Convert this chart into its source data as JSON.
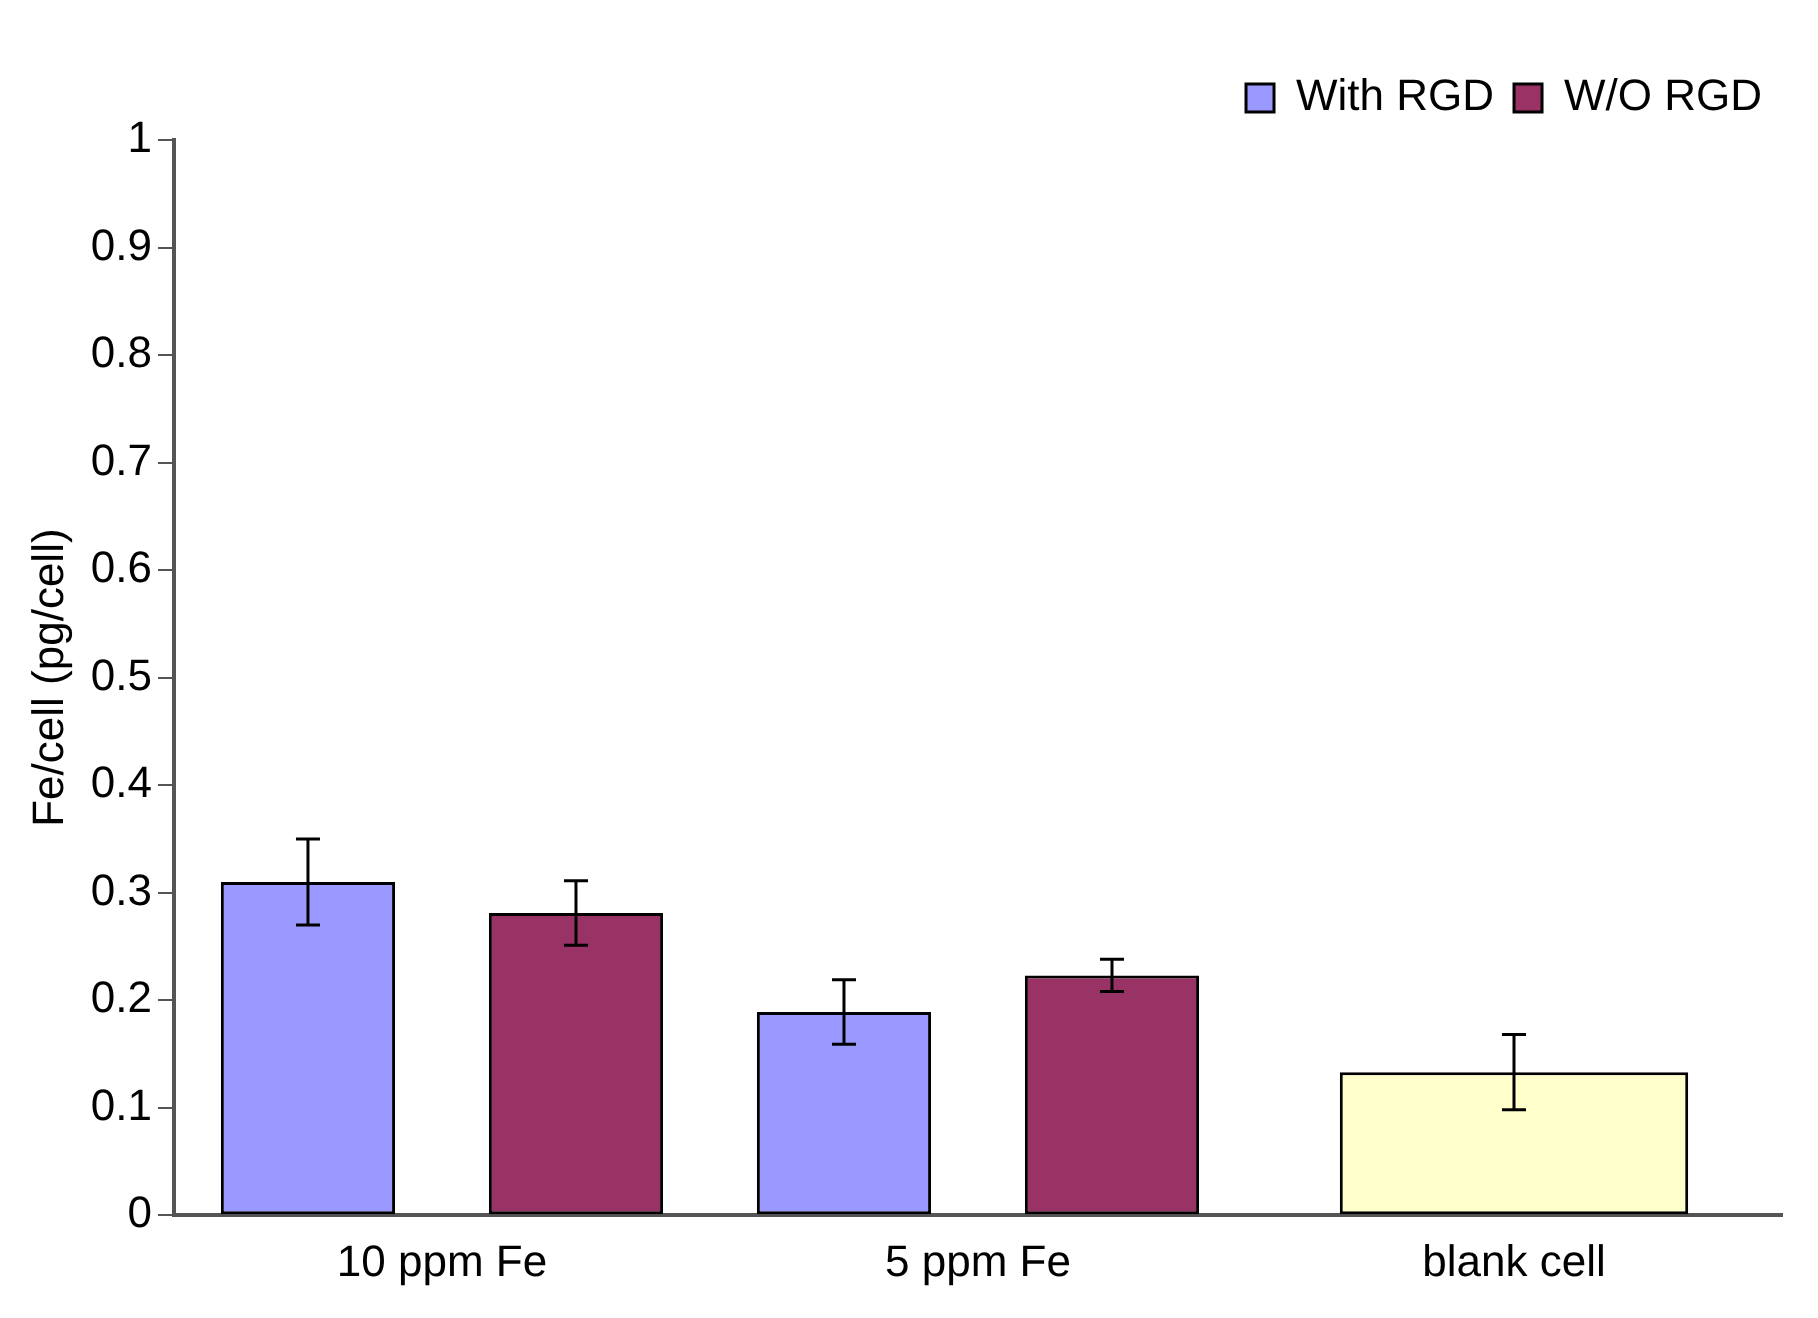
{
  "chart_data": {
    "type": "bar",
    "ylabel": "Fe/cell (pg/cell)",
    "categories": [
      "10 ppm Fe",
      "5 ppm Fe",
      "blank cell"
    ],
    "series": [
      {
        "name": "With RGD",
        "color": "#9999ff",
        "values": [
          0.31,
          0.189,
          null
        ],
        "errors": [
          0.04,
          0.03,
          null
        ]
      },
      {
        "name": "W/O RGD",
        "color": "#993366",
        "values": [
          0.281,
          0.223,
          null
        ],
        "errors": [
          0.03,
          0.015,
          null
        ]
      },
      {
        "color": "#ffffcc",
        "values": [
          null,
          null,
          0.133
        ],
        "errors": [
          null,
          null,
          0.035
        ]
      }
    ],
    "ylim": [
      0,
      1
    ],
    "yticks": [
      0,
      0.1,
      0.2,
      0.3,
      0.4,
      0.5,
      0.6,
      0.7,
      0.8,
      0.9,
      1
    ],
    "grid": false,
    "legend": "top right"
  }
}
